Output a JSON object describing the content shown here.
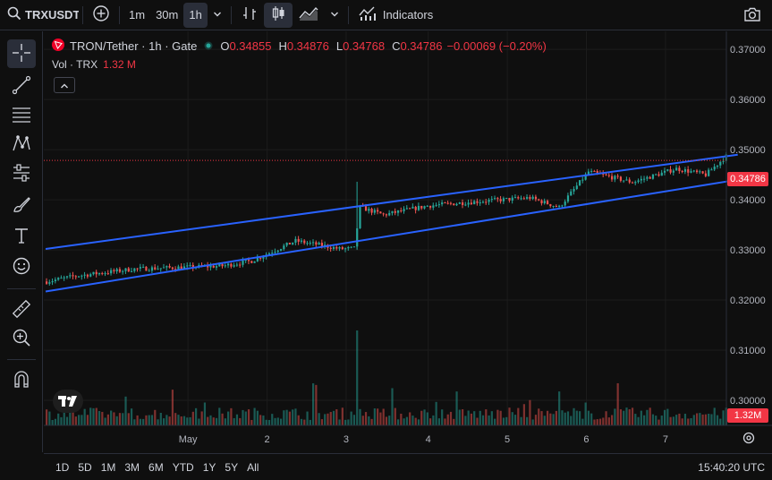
{
  "topbar": {
    "symbol": "TRXUSDT",
    "intervals": [
      "1m",
      "30m",
      "1h"
    ],
    "active_interval": "1h",
    "indicators_label": "Indicators"
  },
  "legend": {
    "title": "TRON/Tether · 1h · Gate",
    "open_label": "O",
    "open": "0.34855",
    "high_label": "H",
    "high": "0.34876",
    "low_label": "L",
    "low": "0.34768",
    "close_label": "C",
    "close": "0.34786",
    "change": "−0.00069 (−0.20%)",
    "vol_label": "Vol · TRX",
    "vol_value": "1.32 M"
  },
  "price_axis": {
    "ticks": [
      "0.37000",
      "0.36000",
      "0.35000",
      "0.34000",
      "0.33000",
      "0.32000",
      "0.31000",
      "0.30000"
    ],
    "last_price": "0.34786",
    "last_volume": "1.32M"
  },
  "time_axis": {
    "ticks": [
      "May",
      "2",
      "3",
      "4",
      "5",
      "6",
      "7"
    ]
  },
  "ranges": [
    "1D",
    "5D",
    "1M",
    "3M",
    "6M",
    "YTD",
    "1Y",
    "5Y",
    "All"
  ],
  "clock": "15:40:20 UTC",
  "colors": {
    "up": "#26a69a",
    "down": "#ef5350",
    "channel": "#2962ff",
    "background": "#0f0f0f",
    "grid": "#1c1c1c",
    "price_tag": "#f23645"
  },
  "chart_data": {
    "type": "line",
    "price_range": [
      0.295,
      0.3736
    ],
    "candle_count": 180,
    "price_anchors": [
      [
        0,
        0.3237
      ],
      [
        10,
        0.3248
      ],
      [
        30,
        0.3262
      ],
      [
        60,
        0.3268
      ],
      [
        70,
        0.3278
      ],
      [
        85,
        0.3318
      ],
      [
        95,
        0.3308
      ],
      [
        100,
        0.3302
      ],
      [
        105,
        0.3303
      ],
      [
        107,
        0.3385
      ],
      [
        115,
        0.337
      ],
      [
        130,
        0.3388
      ],
      [
        150,
        0.3398
      ],
      [
        165,
        0.3404
      ],
      [
        175,
        0.3385
      ],
      [
        185,
        0.3456
      ],
      [
        200,
        0.3435
      ],
      [
        215,
        0.3462
      ],
      [
        225,
        0.345
      ],
      [
        232,
        0.3487
      ]
    ],
    "channel_upper": {
      "start": [
        0,
        0.3302
      ],
      "end": [
        232,
        0.349
      ]
    },
    "channel_lower": {
      "start": [
        0,
        0.3217
      ],
      "end": [
        232,
        0.344
      ]
    },
    "volume_spike_index": 106
  }
}
